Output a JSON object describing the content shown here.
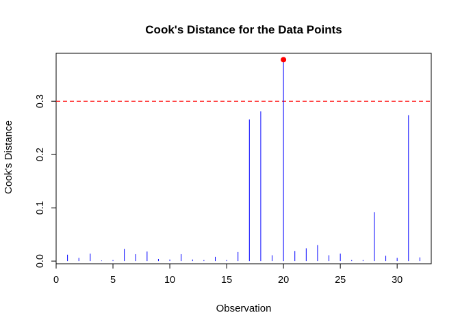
{
  "chart_data": {
    "type": "line",
    "title": "Cook's Distance for the Data Points",
    "xlabel": "Observation",
    "ylabel": "Cook's Distance",
    "xlim": [
      0,
      33
    ],
    "ylim": [
      -0.005,
      0.39
    ],
    "x_ticks": [
      0,
      5,
      10,
      15,
      20,
      25,
      30
    ],
    "y_ticks": [
      0.0,
      0.1,
      0.2,
      0.3
    ],
    "x_tick_labels": [
      "0",
      "5",
      "10",
      "15",
      "20",
      "25",
      "30"
    ],
    "y_tick_labels": [
      "0.0",
      "0.1",
      "0.2",
      "0.3"
    ],
    "grid": false,
    "series": [
      {
        "style": "histogram-spikes",
        "color": "#0000ff",
        "x": [
          1,
          2,
          3,
          4,
          5,
          6,
          7,
          8,
          9,
          10,
          11,
          12,
          13,
          14,
          15,
          16,
          17,
          18,
          19,
          20,
          21,
          22,
          23,
          24,
          25,
          26,
          27,
          28,
          29,
          30,
          31,
          32
        ],
        "values": [
          0.012,
          0.006,
          0.014,
          0.001,
          0.002,
          0.023,
          0.013,
          0.018,
          0.004,
          0.003,
          0.013,
          0.003,
          0.002,
          0.008,
          0.002,
          0.017,
          0.266,
          0.281,
          0.011,
          0.378,
          0.019,
          0.024,
          0.03,
          0.011,
          0.014,
          0.002,
          0.002,
          0.092,
          0.01,
          0.006,
          0.274,
          0.007
        ]
      }
    ],
    "threshold": {
      "value": 0.3,
      "color": "#ff0000",
      "style": "dashed"
    },
    "highlight_points": [
      {
        "x": 20,
        "y": 0.378,
        "color": "#ff0000"
      }
    ]
  }
}
